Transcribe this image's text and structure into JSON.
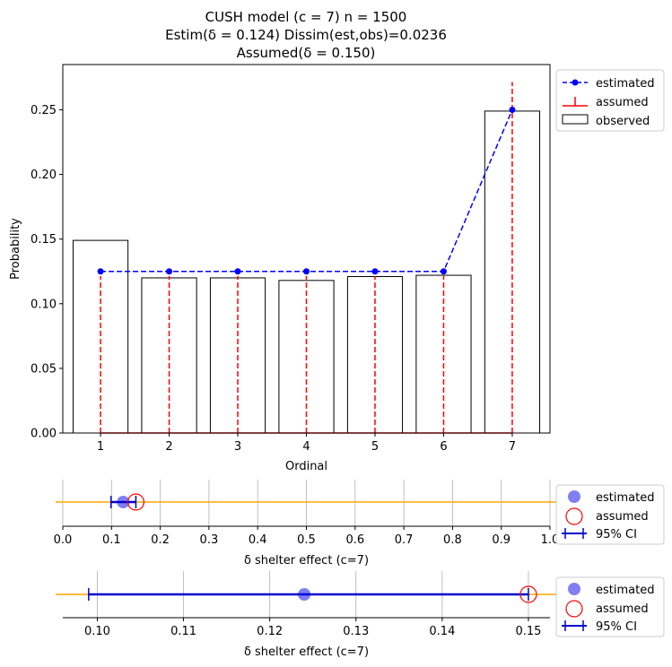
{
  "chart_data": [
    {
      "type": "bar",
      "title_lines": [
        "CUSH model (c = 7)   n = 1500",
        "Estim(δ = 0.124)     Dissim(est,obs)=0.0236",
        "Assumed(δ = 0.150)"
      ],
      "xlabel": "Ordinal",
      "ylabel": "Probability",
      "categories": [
        "1",
        "2",
        "3",
        "4",
        "5",
        "6",
        "7"
      ],
      "ylim": [
        0,
        0.285
      ],
      "yticks": [
        "0.00",
        "0.05",
        "0.10",
        "0.15",
        "0.20",
        "0.25"
      ],
      "series": [
        {
          "name": "observed",
          "kind": "bar",
          "values": [
            0.149,
            0.12,
            0.12,
            0.118,
            0.121,
            0.122,
            0.249
          ],
          "color": "#000000"
        },
        {
          "name": "estimated",
          "kind": "line",
          "values": [
            0.125,
            0.125,
            0.125,
            0.125,
            0.125,
            0.125,
            0.25
          ],
          "color": "#0000ff"
        },
        {
          "name": "assumed",
          "kind": "stem",
          "values": [
            0.1214,
            0.1214,
            0.1214,
            0.1214,
            0.1214,
            0.1214,
            0.2714
          ],
          "color": "#ff0000"
        }
      ],
      "legend": {
        "placement": "outside-top-right",
        "items": [
          "estimated",
          "assumed",
          "observed"
        ]
      }
    },
    {
      "type": "scatter",
      "xlabel": "δ  shelter effect (c=7)",
      "xlim": [
        0.0,
        1.0
      ],
      "xticks": [
        "0.0",
        "0.1",
        "0.2",
        "0.3",
        "0.4",
        "0.5",
        "0.6",
        "0.7",
        "0.8",
        "0.9",
        "1.0"
      ],
      "estimated": 0.124,
      "assumed": 0.15,
      "ci": [
        0.099,
        0.15
      ],
      "line_color": "#ffa500",
      "grid": true,
      "legend": {
        "placement": "outside-right",
        "items": [
          "estimated",
          "assumed",
          "95% CI"
        ]
      }
    },
    {
      "type": "scatter",
      "xlabel": "δ  shelter effect (c=7)",
      "xlim": [
        0.096,
        0.1525
      ],
      "xticks": [
        "0.10",
        "0.11",
        "0.12",
        "0.13",
        "0.14",
        "0.15"
      ],
      "estimated": 0.124,
      "assumed": 0.15,
      "ci": [
        0.099,
        0.15
      ],
      "line_color": "#ffa500",
      "grid": true,
      "legend": {
        "placement": "outside-right",
        "items": [
          "estimated",
          "assumed",
          "95% CI"
        ]
      }
    }
  ]
}
